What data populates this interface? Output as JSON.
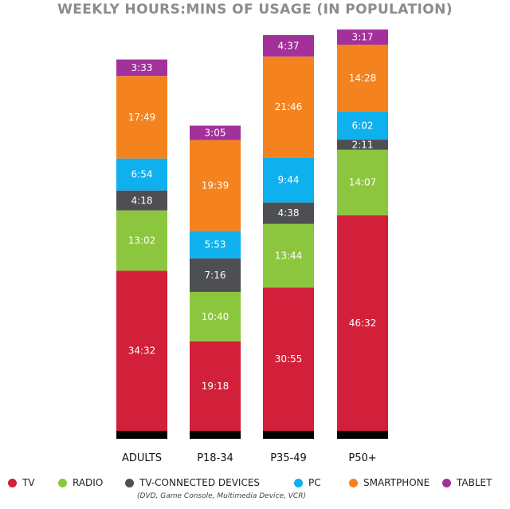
{
  "chart_data": {
    "type": "bar",
    "stacked": true,
    "title": "WEEKLY HOURS:MINS OF USAGE (IN POPULATION)",
    "categories": [
      "ADULTS",
      "P18-34",
      "P35-49",
      "P50+"
    ],
    "series": [
      {
        "name": "TV",
        "color": "#d2203a",
        "values": [
          "34:32",
          "19:18",
          "30:55",
          "46:32"
        ]
      },
      {
        "name": "RADIO",
        "color": "#8cc63f",
        "values": [
          "13:02",
          "10:40",
          "13:44",
          "14:07"
        ]
      },
      {
        "name": "TV-CONNECTED DEVICES",
        "color": "#4d4f53",
        "values": [
          "4:18",
          "7:16",
          "4:38",
          "2:11"
        ]
      },
      {
        "name": "PC",
        "color": "#0fb0ee",
        "values": [
          "6:54",
          "5:53",
          "9:44",
          "6:02"
        ]
      },
      {
        "name": "SMARTPHONE",
        "color": "#f4831f",
        "values": [
          "17:49",
          "19:39",
          "21:46",
          "14:28"
        ]
      },
      {
        "name": "TABLET",
        "color": "#a3319c",
        "values": [
          "3:33",
          "3:05",
          "4:37",
          "3:17"
        ]
      }
    ],
    "legend_note": "(DVD, Game Console, Multimedia Device, VCR)",
    "legend_position": "bottom"
  }
}
